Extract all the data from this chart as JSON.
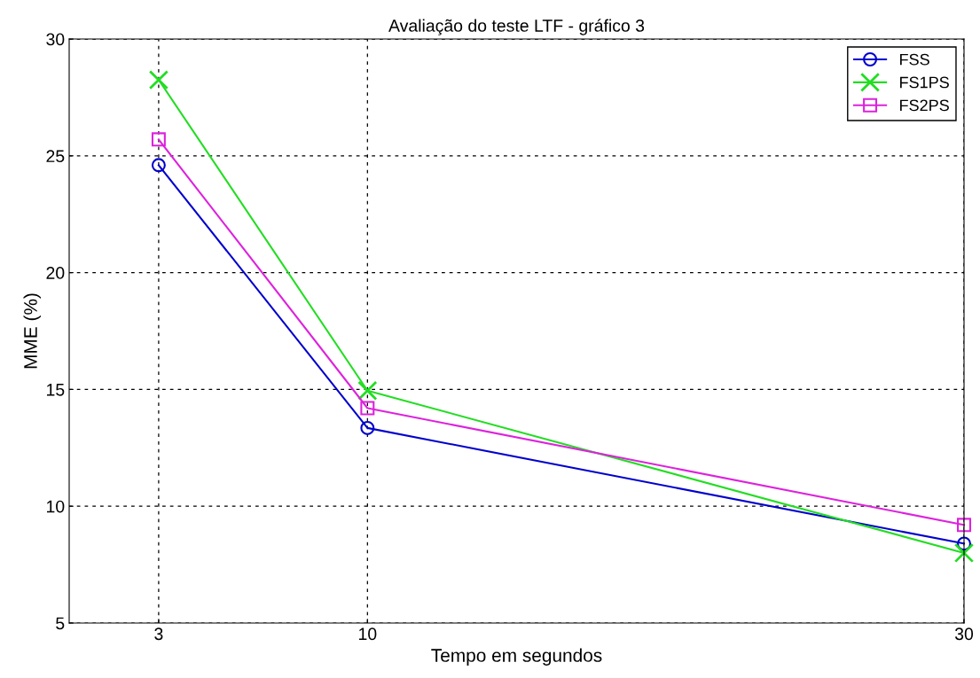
{
  "chart_data": {
    "type": "line",
    "title": "Avaliação do teste LTF - gráfico 3",
    "xlabel": "Tempo em segundos",
    "ylabel": "MME (%)",
    "x": [
      3,
      10,
      30
    ],
    "xlim": [
      0,
      30
    ],
    "xticks": [
      3,
      10,
      30
    ],
    "ylim": [
      5,
      30
    ],
    "yticks": [
      5,
      10,
      15,
      20,
      25,
      30
    ],
    "grid": true,
    "legend": "top right",
    "series": [
      {
        "name": "FSS",
        "color": "#0000cc",
        "values": [
          24.6,
          13.35,
          8.4
        ],
        "marker": "circle"
      },
      {
        "name": "FS1PS",
        "color": "#22dd22",
        "values": [
          28.25,
          14.95,
          8.0
        ],
        "marker": "cross"
      },
      {
        "name": "FS2PS",
        "color": "#dd22dd",
        "values": [
          25.7,
          14.2,
          9.2
        ],
        "marker": "square"
      }
    ]
  }
}
